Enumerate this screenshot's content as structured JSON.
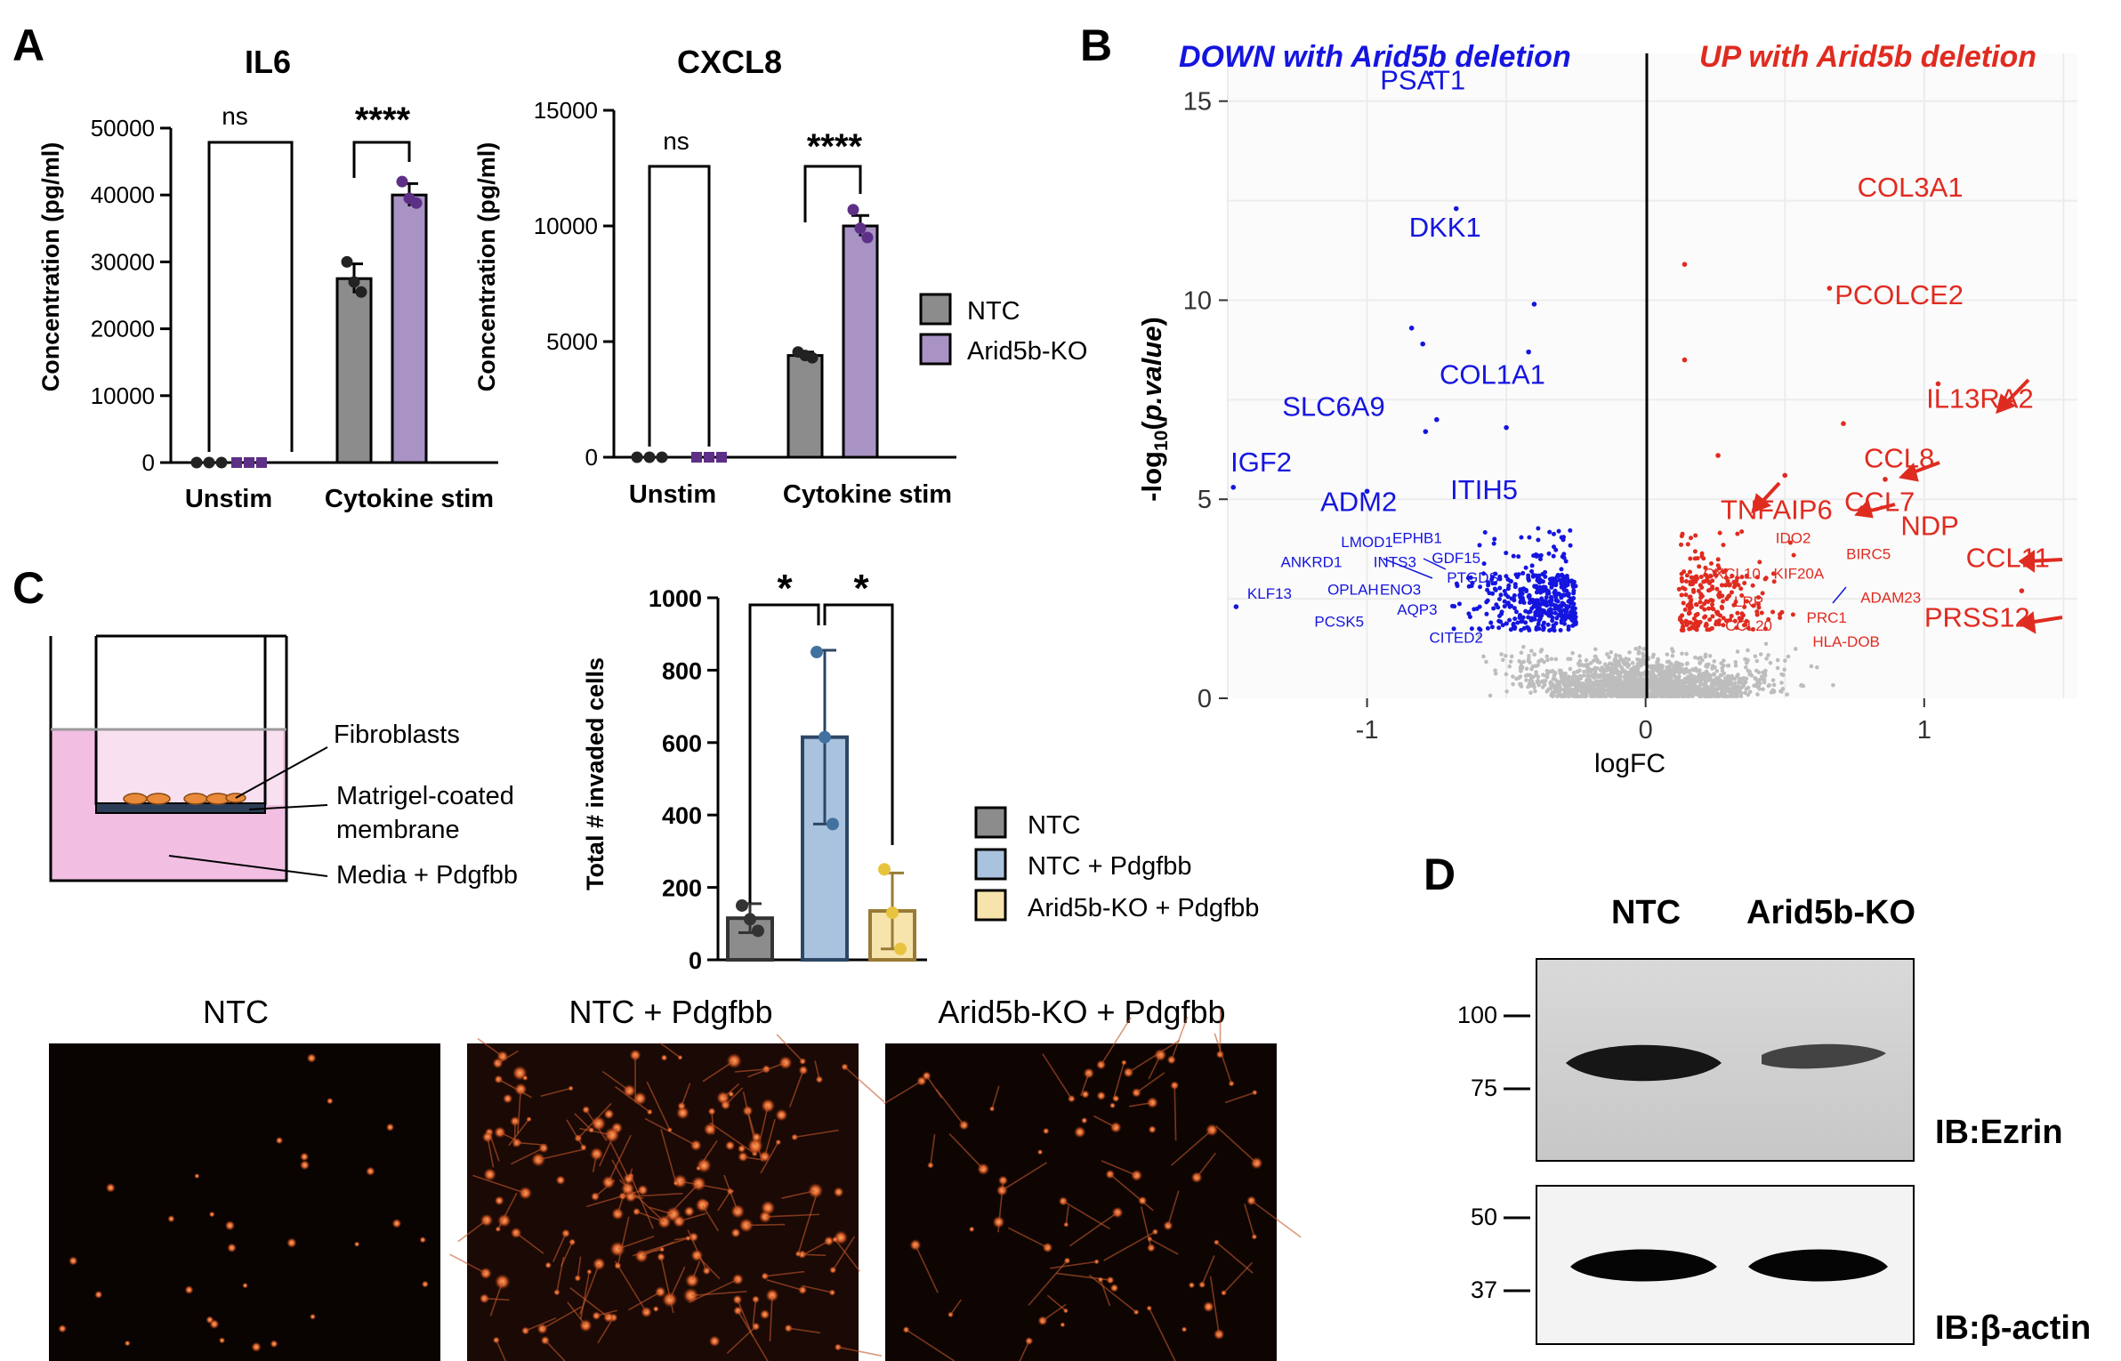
{
  "colors": {
    "ntc": "#8c8c8c",
    "ko": "#a893c4",
    "ko_dot": "#5d2f86",
    "down": "#1515e0",
    "up": "#e02b20",
    "grey": "#bdbdbd",
    "ntc_pd": "#a9c2dd",
    "ko_pd": "#f7e4ad",
    "ko_pd_edge": "#9a7a33"
  },
  "panel_labels": {
    "a": "A",
    "b": "B",
    "c": "C",
    "d": "D"
  },
  "chart_data": [
    {
      "id": "il6",
      "type": "bar",
      "title": "IL6",
      "ylabel": "Concentration (pg/ml)",
      "ylim": [
        0,
        50000
      ],
      "yticks": [
        0,
        10000,
        20000,
        30000,
        40000,
        50000
      ],
      "categories": [
        "Unstim",
        "Cytokine stim"
      ],
      "series": [
        {
          "name": "NTC",
          "values": [
            0,
            27500
          ],
          "err": [
            0,
            2200
          ],
          "points": [
            [
              0,
              0,
              0
            ],
            [
              30000,
              27000,
              25500
            ]
          ]
        },
        {
          "name": "Arid5b-KO",
          "values": [
            0,
            40000
          ],
          "err": [
            0,
            1700
          ],
          "points": [
            [
              0,
              0,
              0
            ],
            [
              42000,
              39500,
              38800
            ]
          ]
        }
      ],
      "significance": [
        "ns",
        "****"
      ]
    },
    {
      "id": "cxcl8",
      "type": "bar",
      "title": "CXCL8",
      "ylabel": "Concentration (pg/ml)",
      "ylim": [
        0,
        15000
      ],
      "yticks": [
        0,
        5000,
        10000,
        15000
      ],
      "categories": [
        "Unstim",
        "Cytokine stim"
      ],
      "series": [
        {
          "name": "NTC",
          "values": [
            0,
            4400
          ],
          "err": [
            0,
            150
          ],
          "points": [
            [
              0,
              0,
              0
            ],
            [
              4550,
              4400,
              4300
            ]
          ]
        },
        {
          "name": "Arid5b-KO",
          "values": [
            0,
            10000
          ],
          "err": [
            0,
            450
          ],
          "points": [
            [
              0,
              0,
              0
            ],
            [
              10700,
              9900,
              9500
            ]
          ]
        }
      ],
      "significance": [
        "ns",
        "****"
      ]
    },
    {
      "id": "volcano",
      "type": "scatter",
      "xlabel": "logFC",
      "ylabel": "-log10(p.value)",
      "xlim": [
        -1.5,
        1.55
      ],
      "ylim": [
        0,
        16.2
      ],
      "xticks": [
        -1,
        0,
        1
      ],
      "yticks": [
        0,
        5,
        10,
        15
      ],
      "title_down": "DOWN with Arid5b deletion",
      "title_up": "UP with Arid5b deletion",
      "labels_down_large": [
        {
          "text": "PSAT1",
          "x": -0.8,
          "y": 15.3
        },
        {
          "text": "DKK1",
          "x": -0.72,
          "y": 11.6
        },
        {
          "text": "COL1A1",
          "x": -0.55,
          "y": 7.9
        },
        {
          "text": "SLC6A9",
          "x": -1.12,
          "y": 7.1
        },
        {
          "text": "IGF2",
          "x": -1.38,
          "y": 5.7
        },
        {
          "text": "ITIH5",
          "x": -0.58,
          "y": 5.0
        },
        {
          "text": "ADM2",
          "x": -1.03,
          "y": 4.7
        }
      ],
      "labels_down_small": [
        {
          "text": "LMOD1",
          "x": -1.0,
          "y": 3.8
        },
        {
          "text": "EPHB1",
          "x": -0.82,
          "y": 3.9
        },
        {
          "text": "ANKRD1",
          "x": -1.2,
          "y": 3.3
        },
        {
          "text": "INTS3",
          "x": -0.9,
          "y": 3.3
        },
        {
          "text": "GDF15",
          "x": -0.68,
          "y": 3.4
        },
        {
          "text": "KLF13",
          "x": -1.35,
          "y": 2.5
        },
        {
          "text": "OPLAH",
          "x": -1.05,
          "y": 2.6
        },
        {
          "text": "ENO3",
          "x": -0.88,
          "y": 2.6
        },
        {
          "text": "PTGDS",
          "x": -0.62,
          "y": 2.9
        },
        {
          "text": "AQP3",
          "x": -0.82,
          "y": 2.1
        },
        {
          "text": "PCSK5",
          "x": -1.1,
          "y": 1.8
        },
        {
          "text": "CITED2",
          "x": -0.68,
          "y": 1.4
        }
      ],
      "labels_up_large": [
        {
          "text": "COL3A1",
          "x": 0.95,
          "y": 12.6
        },
        {
          "text": "PCOLCE2",
          "x": 0.91,
          "y": 9.9
        },
        {
          "text": "IL13RA2",
          "x": 1.2,
          "y": 7.3
        },
        {
          "text": "CCL8",
          "x": 0.91,
          "y": 5.8
        },
        {
          "text": "TNFAIP6",
          "x": 0.47,
          "y": 4.5
        },
        {
          "text": "CCL7",
          "x": 0.84,
          "y": 4.7
        },
        {
          "text": "NDP",
          "x": 1.02,
          "y": 4.1
        },
        {
          "text": "CCL11",
          "x": 1.3,
          "y": 3.3
        },
        {
          "text": "PRSS12",
          "x": 1.19,
          "y": 1.8
        }
      ],
      "labels_up_small": [
        {
          "text": "IDO2",
          "x": 0.53,
          "y": 3.9
        },
        {
          "text": "BIRC5",
          "x": 0.8,
          "y": 3.5
        },
        {
          "text": "CXCL10",
          "x": 0.31,
          "y": 3.0
        },
        {
          "text": "KIF20A",
          "x": 0.55,
          "y": 3.0
        },
        {
          "text": "ADAM23",
          "x": 0.88,
          "y": 2.4
        },
        {
          "text": "LRP",
          "x": 0.37,
          "y": 2.3
        },
        {
          "text": "PRC1",
          "x": 0.65,
          "y": 1.9
        },
        {
          "text": "CCL20",
          "x": 0.37,
          "y": 1.7
        },
        {
          "text": "HLA-DOB",
          "x": 0.72,
          "y": 1.3
        }
      ]
    },
    {
      "id": "invasion",
      "type": "bar",
      "ylabel": "Total # invaded cells",
      "ylim": [
        0,
        1000
      ],
      "yticks": [
        0,
        200,
        400,
        600,
        800,
        1000
      ],
      "categories": [
        "NTC",
        "NTC + Pdgfbb",
        "Arid5b-KO + Pdgfbb"
      ],
      "values": [
        115,
        615,
        135
      ],
      "err": [
        40,
        240,
        105
      ],
      "points": [
        [
          150,
          112,
          80
        ],
        [
          850,
          615,
          375
        ],
        [
          250,
          130,
          30
        ]
      ],
      "significance": [
        "*",
        "*"
      ]
    }
  ],
  "panel_a": {
    "xlabels": [
      "Unstim",
      "Cytokine stim"
    ],
    "legend": [
      "NTC",
      "Arid5b-KO"
    ]
  },
  "panel_c": {
    "schematic": {
      "fibroblasts": "Fibroblasts",
      "membrane_1": "Matrigel-coated",
      "membrane_2": "membrane",
      "media": "Media + Pdgfbb"
    },
    "legend": [
      "NTC",
      "NTC + Pdgfbb",
      "Arid5b-KO + Pdgfbb"
    ],
    "micrographs": [
      "NTC",
      "NTC + Pdgfbb",
      "Arid5b-KO + Pdgfbb"
    ]
  },
  "panel_d": {
    "lanes": [
      "NTC",
      "Arid5b-KO"
    ],
    "blot1": {
      "markers": [
        "100",
        "75"
      ],
      "label": "IB:Ezrin"
    },
    "blot2": {
      "markers": [
        "50",
        "37"
      ],
      "label": "IB:β-actin"
    }
  }
}
